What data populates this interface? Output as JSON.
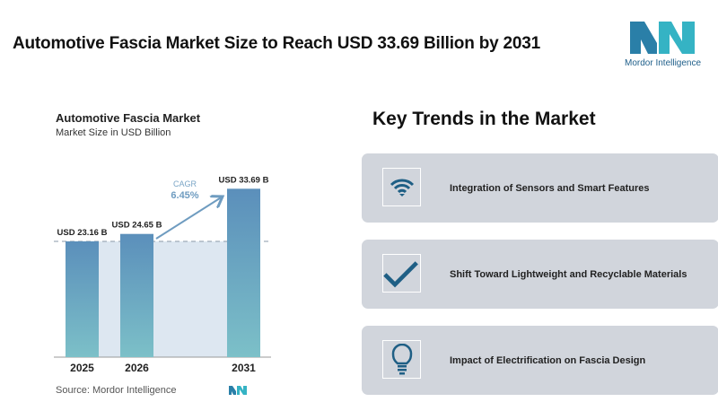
{
  "header": {
    "title": "Automotive Fascia Market Size to Reach USD 33.69 Billion by 2031",
    "logo_text": "Mordor Intelligence"
  },
  "chart_data": {
    "type": "bar",
    "title": "Automotive Fascia Market",
    "subtitle": "Market Size in USD Billion",
    "categories": [
      "2025",
      "2026",
      "2031"
    ],
    "values": [
      23.16,
      24.65,
      33.69
    ],
    "data_labels": [
      "USD 23.16 B",
      "USD 24.65 B",
      "USD 33.69 B"
    ],
    "annotation": {
      "label": "CAGR",
      "value": "6.45%"
    },
    "ylim": [
      0,
      34
    ],
    "grid": false,
    "colors": {
      "bar_top": "#5b8fbb",
      "bar_bottom": "#7cc0c8",
      "shade": "#dde7f1",
      "accent": "#6f9cc0"
    },
    "source": "Source:  Mordor Intelligence"
  },
  "trends": {
    "title": "Key Trends in the Market",
    "items": [
      {
        "icon": "wifi-icon",
        "label": "Integration of Sensors and Smart Features"
      },
      {
        "icon": "checkmark-icon",
        "label": "Shift Toward Lightweight and Recyclable Materials"
      },
      {
        "icon": "lightbulb-icon",
        "label": "Impact of Electrification on Fascia Design"
      }
    ]
  },
  "colors": {
    "icon": "#1f5f85",
    "card": "#d1d5dc"
  }
}
